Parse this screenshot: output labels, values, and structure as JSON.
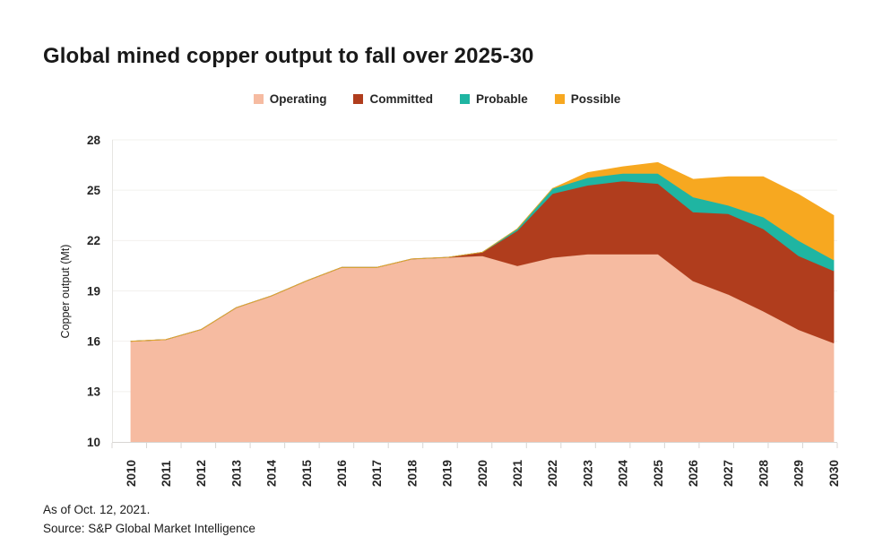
{
  "title": "Global mined copper output to fall over 2025-30",
  "footer": {
    "as_of": "As of Oct. 12, 2021.",
    "source": "Source: S&P Global Market Intelligence"
  },
  "colors": {
    "grid": "#F2F0EE",
    "axis": "#D8D6D3",
    "left_axis": "#E7E5E2",
    "text": "#262626"
  },
  "chart_data": {
    "type": "area",
    "stacked": true,
    "title": "Global mined copper output to fall over 2025-30",
    "xlabel": "",
    "ylabel": "Copper output (Mt)",
    "ylim": [
      10,
      28
    ],
    "ytick_step": 3,
    "yticks": [
      10,
      13,
      16,
      19,
      22,
      25,
      28
    ],
    "grid": "horizontal",
    "legend_position": "top",
    "x": [
      2010,
      2011,
      2012,
      2013,
      2014,
      2015,
      2016,
      2017,
      2018,
      2019,
      2020,
      2021,
      2022,
      2023,
      2024,
      2025,
      2026,
      2027,
      2028,
      2029,
      2030
    ],
    "series": [
      {
        "name": "Operating",
        "color": "#F6BBA1",
        "edge_color": "#DC9E7E",
        "values": [
          16.0,
          16.1,
          16.7,
          18.0,
          18.7,
          19.6,
          20.4,
          20.4,
          20.9,
          21.0,
          21.1,
          20.5,
          21.0,
          21.2,
          21.2,
          21.2,
          19.6,
          18.8,
          17.8,
          16.7,
          15.9
        ]
      },
      {
        "name": "Committed",
        "color": "#B03D1D",
        "values": [
          0,
          0,
          0,
          0,
          0,
          0,
          0,
          0,
          0,
          0,
          0.2,
          2.1,
          3.8,
          4.1,
          4.35,
          4.2,
          4.1,
          4.8,
          4.9,
          4.4,
          4.3
        ]
      },
      {
        "name": "Probable",
        "color": "#1FB5A2",
        "values": [
          0,
          0,
          0,
          0,
          0,
          0,
          0,
          0,
          0,
          0,
          0,
          0.1,
          0.3,
          0.45,
          0.45,
          0.6,
          0.9,
          0.5,
          0.7,
          0.9,
          0.65
        ]
      },
      {
        "name": "Possible",
        "color": "#F7A820",
        "values": [
          0,
          0,
          0,
          0,
          0,
          0,
          0,
          0,
          0,
          0,
          0,
          0,
          0,
          0.3,
          0.4,
          0.65,
          1.05,
          1.7,
          2.4,
          2.75,
          2.65
        ]
      }
    ]
  }
}
